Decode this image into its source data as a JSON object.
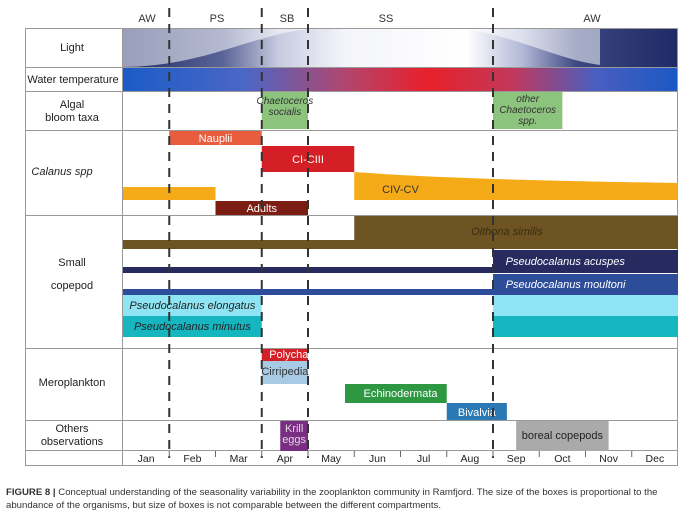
{
  "seasons": [
    {
      "label": "AW",
      "m_start": 0.0,
      "m_end": 1.0
    },
    {
      "label": "PS",
      "m_start": 1.0,
      "m_end": 3.0
    },
    {
      "label": "SB",
      "m_start": 3.0,
      "m_end": 4.0
    },
    {
      "label": "SS",
      "m_start": 4.0,
      "m_end": 8.0
    },
    {
      "label": "AW",
      "m_start": 8.0,
      "m_end": 12.0
    }
  ],
  "season_boundaries": [
    1.0,
    3.0,
    4.0,
    8.0
  ],
  "months": [
    "Jan",
    "Feb",
    "Mar",
    "Apr",
    "May",
    "Jun",
    "Jul",
    "Aug",
    "Sep",
    "Oct",
    "Nov",
    "Dec"
  ],
  "rows": [
    {
      "id": "light",
      "label": "Light",
      "italic": false
    },
    {
      "id": "water",
      "label": "Water temperature",
      "italic": false
    },
    {
      "id": "algal",
      "label": "Algal bloom taxa",
      "italic": false
    },
    {
      "id": "calanus",
      "label": "Calanus spp",
      "italic": true
    },
    {
      "id": "small",
      "label": "Small copepod",
      "italic": false
    },
    {
      "id": "mero",
      "label": "Meroplankton",
      "italic": false
    },
    {
      "id": "others",
      "label": "Others observations",
      "italic": false
    }
  ],
  "boxes": [
    {
      "id": "chaetoceros-socialis",
      "row": "algal",
      "label": "Chaetoceros socialis",
      "italic": true,
      "color": "#8cc47d",
      "text_color": "#333333",
      "m_start": 3.0,
      "m_end": 4.0
    },
    {
      "id": "other-chaetoceros",
      "row": "algal",
      "label": "other Chaetoceros spp.",
      "italic": true,
      "color": "#8cc47d",
      "text_color": "#333333",
      "m_start": 8.0,
      "m_end": 9.5
    },
    {
      "id": "nauplii",
      "row": "calanus",
      "label": "Nauplii",
      "italic": false,
      "color": "#e85d3e",
      "text_color": "#ffffff",
      "m_start": 1.0,
      "m_end": 3.0
    },
    {
      "id": "ci-ciii",
      "row": "calanus",
      "label": "CI-CIII",
      "italic": false,
      "color": "#d41f26",
      "text_color": "#ffffff",
      "m_start": 3.0,
      "m_end": 5.0
    },
    {
      "id": "civ-cv",
      "row": "calanus",
      "label": "CIV-CV",
      "italic": false,
      "color": "#f5ab17",
      "text_color": "#333333",
      "m_start": 5.0,
      "m_end": 12.0
    },
    {
      "id": "calanus-early",
      "row": "calanus",
      "label": "",
      "italic": false,
      "color": "#f5ab17",
      "text_color": "#333333",
      "m_start": 0.0,
      "m_end": 2.0
    },
    {
      "id": "adults",
      "row": "calanus",
      "label": "Adults",
      "italic": false,
      "color": "#7b1d12",
      "text_color": "#ffffff",
      "m_start": 2.0,
      "m_end": 4.0
    },
    {
      "id": "oithona",
      "row": "small",
      "label": "Oithona similis",
      "italic": true,
      "color": "#6d5422",
      "text_color": "#3a2c10",
      "m_start": 0.0,
      "m_end": 12.0
    },
    {
      "id": "p-acuspes",
      "row": "small",
      "label": "Pseudocalanus acuspes",
      "italic": true,
      "color": "#272a5e",
      "text_color": "#ffffff",
      "m_start": 0.0,
      "m_end": 12.0
    },
    {
      "id": "p-moultoni",
      "row": "small",
      "label": "Pseudocalanus moultoni",
      "italic": true,
      "color": "#2d4c9a",
      "text_color": "#ffffff",
      "m_start": 0.0,
      "m_end": 12.0
    },
    {
      "id": "p-elongatus",
      "row": "small",
      "label": "Pseudocalanus elongatus",
      "italic": true,
      "color": "#8fe4f3",
      "text_color": "#222222",
      "m_start": 0.0,
      "m_end": 3.0
    },
    {
      "id": "p-minutus",
      "row": "small",
      "label": "Pseudocalanus  minutus",
      "italic": true,
      "color": "#16b6c1",
      "text_color": "#222222",
      "m_start": 0.0,
      "m_end": 3.0
    },
    {
      "id": "polychaeta",
      "row": "mero",
      "label": "Polychaeta",
      "italic": false,
      "color": "#d41f26",
      "text_color": "#ffffff",
      "m_start": 3.0,
      "m_end": 4.0
    },
    {
      "id": "cirripedia",
      "row": "mero",
      "label": "Cirripedia",
      "italic": false,
      "color": "#a7cbe4",
      "text_color": "#333333",
      "m_start": 3.0,
      "m_end": 4.0
    },
    {
      "id": "echinodermata",
      "row": "mero",
      "label": "Echinodermata",
      "italic": false,
      "color": "#2e9742",
      "text_color": "#ffffff",
      "m_start": 4.8,
      "m_end": 7.0
    },
    {
      "id": "bivalvia",
      "row": "mero",
      "label": "Bivalvia",
      "italic": false,
      "color": "#2a79b5",
      "text_color": "#ffffff",
      "m_start": 7.0,
      "m_end": 8.3
    },
    {
      "id": "krill-eggs",
      "row": "others",
      "label": "Krill eggs",
      "italic": false,
      "color": "#7b2d84",
      "text_color": "#dddddd",
      "m_start": 3.4,
      "m_end": 4.0
    },
    {
      "id": "boreal-copepods",
      "row": "others",
      "label": "boreal copepods",
      "italic": false,
      "color": "#aaaaaa",
      "text_color": "#222222",
      "m_start": 8.5,
      "m_end": 10.5
    }
  ],
  "colors": {
    "light_dark": "#1f2a66",
    "light_light": "#ffffff",
    "water_cold": "#1a5bc4",
    "water_warm": "#e8202a",
    "grid": "#999999",
    "boundary": "#333333"
  },
  "caption": {
    "label": "FIGURE 8 |",
    "text": " Conceptual understanding of the seasonality variability in the zooplankton community in Ramfjord. The size of the boxes is proportional to the abundance of the organisms, but size of boxes is not comparable between the different compartments."
  }
}
